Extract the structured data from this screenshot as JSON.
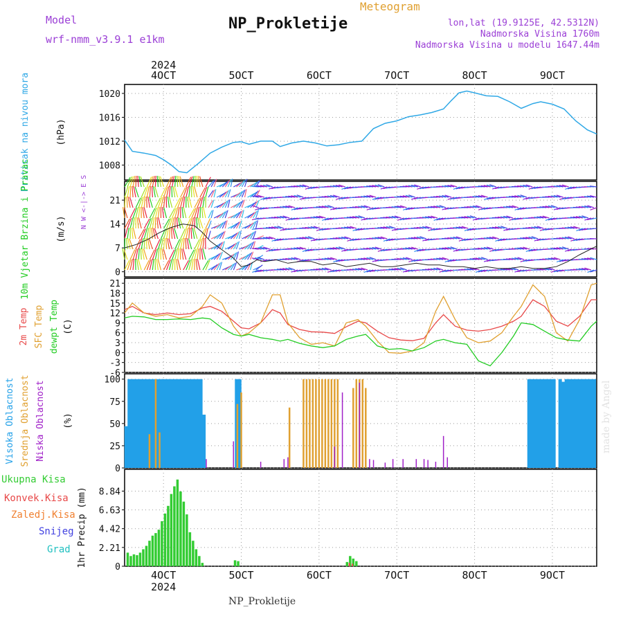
{
  "header": {
    "model_label": "Model",
    "model_name": "wrf-nmm_v3.9.1 e1km",
    "meteogram_label": "Meteogram",
    "title": "NP_Prokletije",
    "coords": "lon,lat (19.9125E, 42.5312N)",
    "altitude": "Nadmorska Visina 1760m",
    "model_altitude": "Nadmorska Visina u modelu 1647.44m",
    "watermark": "made by Angel",
    "footer_station": "NP_Prokletije"
  },
  "colors": {
    "pressure": "#2fa8e6",
    "wind_speed": "#222222",
    "temp2m": "#e84848",
    "sfc_temp": "#e0a030",
    "dewpoint": "#22cc22",
    "visoka": "#22a0e8",
    "srednja": "#e0a030",
    "niska": "#a020c8",
    "precip": "#33cc33",
    "convective": "#e84848",
    "frozen": "#f08030",
    "snow": "#4040e0",
    "hail": "#20c0c0",
    "grid": "#999999"
  },
  "x_axis": {
    "year_top": "2024",
    "year_bottom": "2024",
    "day_labels": [
      "4OCT",
      "5OCT",
      "6OCT",
      "7OCT",
      "8OCT",
      "9OCT"
    ],
    "range_days": [
      3.5,
      9.57
    ]
  },
  "chart_data": [
    {
      "type": "line",
      "id": "pressure",
      "ylabel_side": "Pritisak na nivou mora",
      "ylabel": "(hPa)",
      "yticks": [
        1008,
        1012,
        1016,
        1020
      ],
      "ylim": [
        1005.5,
        1021.5
      ],
      "x": [
        3.5,
        3.6,
        3.75,
        3.9,
        4.0,
        4.1,
        4.2,
        4.3,
        4.45,
        4.6,
        4.75,
        4.9,
        5.0,
        5.1,
        5.25,
        5.4,
        5.5,
        5.65,
        5.8,
        5.95,
        6.1,
        6.25,
        6.4,
        6.55,
        6.7,
        6.85,
        7.0,
        7.15,
        7.3,
        7.45,
        7.6,
        7.7,
        7.8,
        7.9,
        8.0,
        8.15,
        8.3,
        8.45,
        8.6,
        8.75,
        8.85,
        9.0,
        9.15,
        9.3,
        9.45,
        9.57
      ],
      "y": [
        1012.2,
        1010.3,
        1010.0,
        1009.6,
        1008.9,
        1008.0,
        1006.9,
        1006.7,
        1008.3,
        1010.0,
        1011.0,
        1011.8,
        1011.9,
        1011.5,
        1012.0,
        1012.0,
        1011.1,
        1011.7,
        1012.0,
        1011.7,
        1011.2,
        1011.4,
        1011.8,
        1012.0,
        1014.1,
        1015.0,
        1015.4,
        1016.1,
        1016.4,
        1016.8,
        1017.4,
        1018.8,
        1020.1,
        1020.4,
        1020.1,
        1019.6,
        1019.5,
        1018.6,
        1017.5,
        1018.3,
        1018.6,
        1018.2,
        1017.4,
        1015.4,
        1013.9,
        1013.2
      ]
    },
    {
      "type": "line",
      "id": "wind",
      "ylabel_side": "10m Vjetar Brzina i Pravac",
      "ylabel": "(m/s)",
      "compass": "N  W <-|-> E  S",
      "yticks": [
        0,
        7,
        14,
        21
      ],
      "ylim": [
        -1.5,
        26.5
      ],
      "x": [
        3.5,
        3.65,
        3.8,
        3.95,
        4.1,
        4.25,
        4.4,
        4.5,
        4.6,
        4.75,
        4.9,
        5.0,
        5.1,
        5.2,
        5.3,
        5.45,
        5.6,
        5.75,
        5.9,
        6.05,
        6.2,
        6.35,
        6.5,
        6.65,
        6.8,
        6.95,
        7.1,
        7.25,
        7.4,
        7.55,
        7.7,
        7.85,
        8.0,
        8.15,
        8.3,
        8.45,
        8.6,
        8.75,
        8.9,
        9.05,
        9.2,
        9.35,
        9.57
      ],
      "y": [
        7.0,
        8.0,
        9.5,
        11.5,
        13.0,
        14.0,
        13.5,
        11.5,
        9.0,
        6.5,
        4.0,
        1.5,
        2.0,
        3.5,
        3.0,
        3.5,
        2.5,
        3.0,
        3.0,
        2.0,
        2.5,
        1.5,
        2.0,
        2.5,
        1.5,
        1.5,
        2.0,
        2.5,
        2.0,
        2.0,
        1.5,
        1.5,
        1.0,
        1.5,
        1.0,
        1.0,
        1.5,
        1.0,
        1.0,
        1.5,
        3.0,
        5.0,
        7.5
      ]
    },
    {
      "type": "line",
      "id": "temperature",
      "ylabel_side_1": "2m Temp",
      "ylabel_side_2": "SFC Temp",
      "ylabel_side_3": "dewpt Temp",
      "ylabel": "(C)",
      "yticks": [
        -6,
        -3,
        0,
        3,
        6,
        9,
        12,
        15,
        18,
        21
      ],
      "ylim": [
        -6,
        22.5
      ],
      "x": [
        3.5,
        3.6,
        3.75,
        3.9,
        4.05,
        4.2,
        4.35,
        4.5,
        4.6,
        4.75,
        4.9,
        5.0,
        5.1,
        5.25,
        5.4,
        5.5,
        5.6,
        5.75,
        5.9,
        6.05,
        6.2,
        6.35,
        6.5,
        6.6,
        6.75,
        6.9,
        7.05,
        7.2,
        7.35,
        7.5,
        7.6,
        7.75,
        7.9,
        8.05,
        8.2,
        8.35,
        8.5,
        8.6,
        8.75,
        8.9,
        9.05,
        9.2,
        9.35,
        9.5,
        9.57
      ],
      "series": [
        {
          "name": "2m Temp",
          "values": [
            13.0,
            14.0,
            12.0,
            11.5,
            12.0,
            11.5,
            11.8,
            13.5,
            14.0,
            12.5,
            9.5,
            7.5,
            7.2,
            9.0,
            13.0,
            12.0,
            8.5,
            7.0,
            6.3,
            6.2,
            5.8,
            7.8,
            9.5,
            9.0,
            6.5,
            4.5,
            3.8,
            3.6,
            4.3,
            9.0,
            11.5,
            8.0,
            6.8,
            6.5,
            7.0,
            8.0,
            9.5,
            11.0,
            16.0,
            14.0,
            9.5,
            8.0,
            11.0,
            16.0,
            16.0
          ]
        },
        {
          "name": "SFC Temp",
          "values": [
            12.0,
            15.0,
            12.0,
            11.0,
            11.5,
            10.5,
            11.0,
            14.0,
            17.5,
            15.0,
            8.0,
            5.0,
            6.0,
            9.0,
            17.5,
            17.5,
            9.0,
            4.5,
            2.5,
            3.0,
            2.0,
            9.0,
            10.0,
            8.0,
            3.5,
            0.0,
            -0.2,
            0.5,
            3.0,
            12.5,
            17.0,
            10.0,
            4.5,
            3.0,
            3.5,
            6.0,
            11.0,
            14.0,
            20.5,
            17.0,
            6.0,
            3.5,
            10.0,
            20.5,
            21.0
          ]
        },
        {
          "name": "dewpt Temp",
          "values": [
            10.5,
            11.0,
            10.8,
            10.0,
            10.0,
            10.2,
            10.0,
            10.5,
            10.2,
            7.5,
            5.5,
            5.0,
            5.5,
            4.5,
            4.0,
            3.5,
            4.0,
            2.8,
            2.0,
            1.5,
            2.0,
            4.0,
            5.0,
            5.5,
            2.0,
            1.0,
            1.2,
            0.5,
            1.5,
            3.5,
            4.0,
            3.0,
            2.5,
            -2.5,
            -4.0,
            0.0,
            5.0,
            9.0,
            8.5,
            6.5,
            4.5,
            3.8,
            3.5,
            8.0,
            9.5
          ]
        }
      ]
    },
    {
      "type": "bar",
      "id": "clouds",
      "ylabel_side_1": "Visoka Oblacnost",
      "ylabel_side_2": "Srednja Oblacnost",
      "ylabel_side_3": "Niska Oblacnost",
      "ylabel": "(%)",
      "yticks": [
        0,
        25,
        50,
        75,
        100
      ],
      "ylim": [
        0,
        106
      ],
      "series": [
        {
          "name": "Visoka Oblacnost",
          "x": [
            3.52,
            3.56,
            3.6,
            3.64,
            3.68,
            3.72,
            3.76,
            3.8,
            3.84,
            3.88,
            3.92,
            3.96,
            4.0,
            4.04,
            4.08,
            4.12,
            4.16,
            4.2,
            4.24,
            4.28,
            4.32,
            4.36,
            4.4,
            4.44,
            4.48,
            4.52,
            4.94,
            4.98,
            8.7,
            8.74,
            8.78,
            8.82,
            8.86,
            8.9,
            8.94,
            8.98,
            9.02,
            9.1,
            9.14,
            9.18,
            9.22,
            9.26,
            9.3,
            9.34,
            9.38,
            9.42,
            9.46,
            9.5,
            9.54
          ],
          "values": [
            47,
            100,
            100,
            100,
            100,
            100,
            100,
            100,
            100,
            100,
            100,
            100,
            100,
            100,
            100,
            100,
            100,
            100,
            100,
            100,
            100,
            100,
            100,
            100,
            100,
            60,
            100,
            100,
            100,
            100,
            100,
            100,
            100,
            100,
            100,
            100,
            100,
            100,
            97,
            100,
            100,
            100,
            100,
            100,
            100,
            100,
            100,
            100,
            100
          ]
        },
        {
          "name": "Srednja Oblacnost",
          "x": [
            3.82,
            3.9,
            3.95,
            4.95,
            5.0,
            5.62,
            5.8,
            5.84,
            5.88,
            5.92,
            5.96,
            6.0,
            6.04,
            6.08,
            6.12,
            6.16,
            6.2,
            6.24,
            6.44,
            6.48,
            6.52,
            6.56,
            6.6
          ],
          "values": [
            38,
            100,
            40,
            72,
            85,
            68,
            100,
            100,
            100,
            100,
            100,
            100,
            100,
            100,
            100,
            100,
            100,
            100,
            90,
            100,
            100,
            100,
            90
          ]
        },
        {
          "name": "Niska Oblacnost",
          "x": [
            4.55,
            4.9,
            5.25,
            5.55,
            5.6,
            6.2,
            6.3,
            6.52,
            6.65,
            6.7,
            6.85,
            6.95,
            7.08,
            7.25,
            7.35,
            7.4,
            7.5,
            7.6,
            7.65
          ],
          "values": [
            10,
            30,
            7,
            10,
            12,
            24,
            85,
            96,
            10,
            9,
            6,
            10,
            10,
            10,
            10,
            9,
            7,
            36,
            12
          ]
        }
      ]
    },
    {
      "type": "bar",
      "id": "precip",
      "ylabel_side_1": "Ukupna Kisa",
      "ylabel_side_2": "Konvek.Kisa",
      "ylabel_side_3": "Zaledj.Kisa",
      "ylabel_side_4": "Snijeg",
      "ylabel_side_5": "Grad",
      "ylabel": "1hr Precip (mm)",
      "yticks": [
        "0",
        "2.21",
        "4.42",
        "6.63",
        "8.84"
      ],
      "ylim": [
        0,
        11.4
      ],
      "series": [
        {
          "name": "Ukupna Kisa",
          "x": [
            3.54,
            3.58,
            3.62,
            3.66,
            3.7,
            3.74,
            3.78,
            3.82,
            3.86,
            3.9,
            3.94,
            3.98,
            4.02,
            4.06,
            4.1,
            4.14,
            4.18,
            4.22,
            4.26,
            4.3,
            4.34,
            4.38,
            4.42,
            4.46,
            4.5,
            4.92,
            4.96,
            6.36,
            6.4,
            6.44,
            6.48
          ],
          "values": [
            1.6,
            1.2,
            1.4,
            1.3,
            1.6,
            2.0,
            2.4,
            3.0,
            3.6,
            3.9,
            4.3,
            5.3,
            6.2,
            7.1,
            8.5,
            9.4,
            10.2,
            8.8,
            7.6,
            6.1,
            4.0,
            3.0,
            2.0,
            1.2,
            0.4,
            0.7,
            0.6,
            0.5,
            1.2,
            0.9,
            0.6
          ]
        },
        {
          "name": "Konvek.Kisa",
          "x": [
            6.39,
            6.43
          ],
          "values": [
            0.4,
            0.3
          ]
        }
      ]
    }
  ]
}
